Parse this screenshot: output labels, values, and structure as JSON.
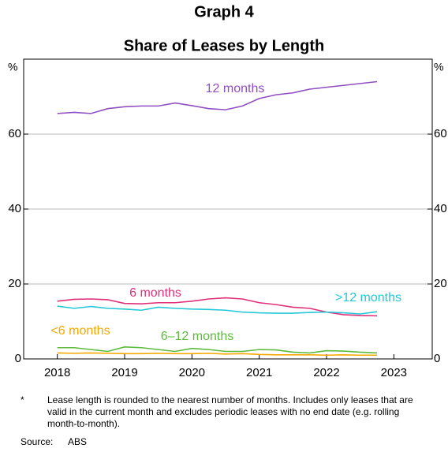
{
  "chart_data": {
    "type": "line",
    "title": "Graph 4",
    "subtitle": "Share of Leases by Length",
    "y_label": "%",
    "x": [
      2018.0,
      2018.25,
      2018.5,
      2018.75,
      2019.0,
      2019.25,
      2019.5,
      2019.75,
      2020.0,
      2020.25,
      2020.5,
      2020.75,
      2021.0,
      2021.25,
      2021.5,
      2021.75,
      2022.0,
      2022.25,
      2022.5,
      2022.75
    ],
    "series": [
      {
        "name": "12 months",
        "color": "#8f4fc2",
        "values": [
          65.5,
          65.8,
          65.5,
          66.8,
          67.3,
          67.5,
          67.5,
          68.3,
          67.6,
          66.8,
          66.5,
          67.5,
          69.5,
          70.5,
          71.0,
          72.0,
          72.5,
          73.0,
          73.5,
          74.0
        ]
      },
      {
        "name": "6 months",
        "color": "#e0307a",
        "values": [
          15.4,
          15.9,
          16.0,
          15.8,
          14.8,
          14.7,
          15.0,
          15.0,
          15.4,
          16.0,
          16.3,
          16.0,
          15.0,
          14.5,
          13.8,
          13.5,
          12.5,
          11.8,
          11.6,
          11.5
        ]
      },
      {
        "name": ">12 months",
        "color": "#22c8d8",
        "values": [
          14.1,
          13.5,
          14.0,
          13.5,
          13.3,
          13.0,
          13.8,
          13.5,
          13.3,
          13.2,
          13.0,
          12.5,
          12.3,
          12.2,
          12.2,
          12.4,
          12.5,
          12.3,
          12.0,
          12.6
        ]
      },
      {
        "name": "6–12 months",
        "color": "#5cbb3c",
        "values": [
          3.0,
          3.0,
          2.5,
          2.0,
          3.2,
          3.0,
          2.5,
          2.0,
          2.8,
          2.5,
          2.0,
          2.0,
          2.5,
          2.4,
          1.8,
          1.6,
          2.2,
          2.1,
          1.8,
          1.6
        ]
      },
      {
        "name": "<6 months",
        "color": "#f5a800",
        "values": [
          1.6,
          1.5,
          1.6,
          1.5,
          1.4,
          1.4,
          1.5,
          1.4,
          1.4,
          1.5,
          1.3,
          1.4,
          1.2,
          1.1,
          1.1,
          1.1,
          1.0,
          1.1,
          1.0,
          1.0
        ]
      }
    ],
    "xlim": [
      2017.5,
      2023.57
    ],
    "xticks": [
      2018,
      2019,
      2020,
      2021,
      2022,
      2023
    ],
    "ylim": [
      0,
      80
    ],
    "yticks": [
      0,
      20,
      40,
      60
    ],
    "grid": true,
    "footnote_marker": "*",
    "footnote": "Lease length is rounded to the nearest number of months. Includes only leases that are valid in the current month and excludes periodic leases with no end date (e.g. rolling month-to-month).",
    "source_label": "Source:",
    "source": "ABS"
  }
}
